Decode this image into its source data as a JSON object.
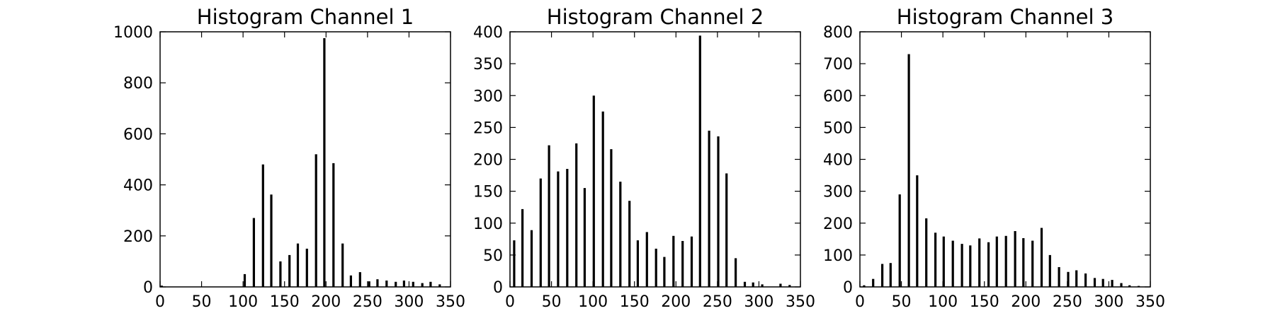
{
  "chart_data": [
    {
      "type": "bar",
      "title": "Histogram Channel 1",
      "xlim": [
        0,
        350
      ],
      "ylim": [
        0,
        1000
      ],
      "xticks": [
        0,
        50,
        100,
        150,
        200,
        250,
        300,
        350
      ],
      "yticks": [
        0,
        200,
        400,
        600,
        800,
        1000
      ],
      "grid": false,
      "x": [
        2,
        102,
        113,
        124,
        134,
        145,
        156,
        166,
        177,
        188,
        198,
        209,
        220,
        230,
        241,
        252,
        262,
        273,
        284,
        294,
        305,
        316,
        326,
        337
      ],
      "values": [
        5,
        50,
        270,
        480,
        362,
        100,
        125,
        170,
        150,
        520,
        975,
        485,
        170,
        45,
        58,
        22,
        30,
        25,
        20,
        25,
        20,
        15,
        20,
        10
      ]
    },
    {
      "type": "bar",
      "title": "Histogram Channel 2",
      "xlim": [
        0,
        350
      ],
      "ylim": [
        0,
        400
      ],
      "xticks": [
        0,
        50,
        100,
        150,
        200,
        250,
        300,
        350
      ],
      "yticks": [
        0,
        50,
        100,
        150,
        200,
        250,
        300,
        350,
        400
      ],
      "grid": false,
      "x": [
        5,
        15,
        26,
        37,
        47,
        58,
        69,
        80,
        90,
        101,
        112,
        122,
        133,
        144,
        154,
        165,
        176,
        186,
        197,
        208,
        219,
        229,
        240,
        251,
        261,
        272,
        283,
        293,
        304,
        326,
        337
      ],
      "values": [
        73,
        122,
        89,
        170,
        222,
        181,
        185,
        225,
        155,
        300,
        275,
        216,
        165,
        135,
        73,
        86,
        60,
        47,
        80,
        72,
        79,
        394,
        245,
        236,
        178,
        45,
        8,
        7,
        4,
        5,
        3
      ]
    },
    {
      "type": "bar",
      "title": "Histogram Channel 3",
      "xlim": [
        0,
        350
      ],
      "ylim": [
        0,
        800
      ],
      "xticks": [
        0,
        50,
        100,
        150,
        200,
        250,
        300,
        350
      ],
      "yticks": [
        0,
        100,
        200,
        300,
        400,
        500,
        600,
        700,
        800
      ],
      "grid": false,
      "x": [
        5,
        16,
        27,
        37,
        48,
        59,
        69,
        80,
        91,
        101,
        112,
        123,
        133,
        144,
        155,
        165,
        176,
        187,
        197,
        208,
        219,
        229,
        240,
        251,
        261,
        272,
        283,
        293,
        304,
        315,
        325,
        336
      ],
      "values": [
        5,
        25,
        72,
        75,
        290,
        730,
        350,
        215,
        170,
        158,
        145,
        135,
        130,
        152,
        140,
        158,
        160,
        175,
        153,
        145,
        185,
        100,
        62,
        47,
        52,
        42,
        28,
        25,
        22,
        12,
        5,
        3
      ]
    }
  ]
}
